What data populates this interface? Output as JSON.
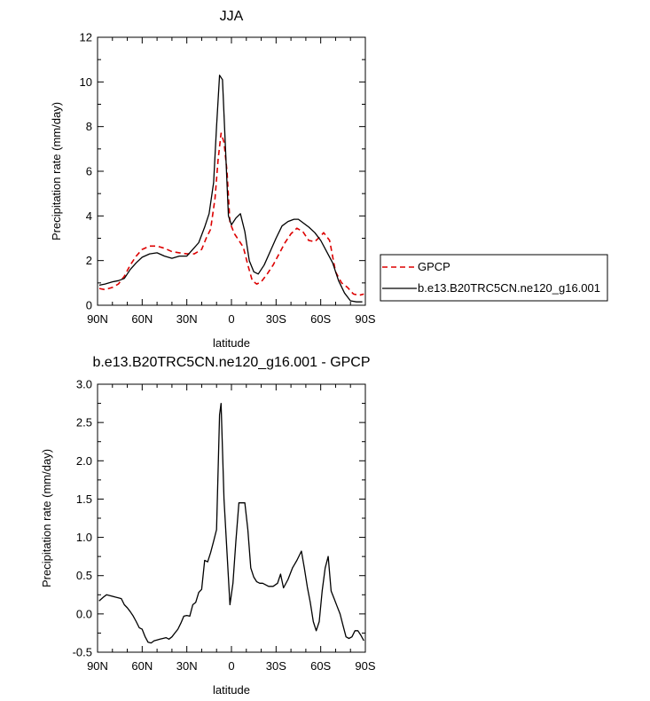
{
  "chart_data": [
    {
      "type": "line",
      "title": "JJA",
      "xlabel": "latitude",
      "ylabel": "Precipitation rate (mm/day)",
      "xlim": [
        90,
        -90
      ],
      "ylim": [
        0,
        12
      ],
      "x_ticks": [
        90,
        60,
        30,
        0,
        -30,
        -60,
        -90
      ],
      "x_tick_labels": [
        "90N",
        "60N",
        "30N",
        "0",
        "30S",
        "60S",
        "90S"
      ],
      "y_ticks": [
        0,
        2,
        4,
        6,
        8,
        10,
        12
      ],
      "y_tick_labels": [
        "0",
        "2",
        "4",
        "6",
        "8",
        "10",
        "12"
      ],
      "grid": false,
      "legend_position": "right",
      "series": [
        {
          "name": "GPCP",
          "color": "#dd0000",
          "dash": "dashed",
          "x": [
            88.8,
            85,
            80,
            76,
            72,
            68,
            64,
            60,
            55,
            50,
            45,
            40,
            35,
            30,
            25,
            20,
            17,
            14,
            11,
            9,
            7,
            5,
            3,
            1,
            -2,
            -5,
            -8,
            -11,
            -14,
            -17,
            -20,
            -24,
            -28,
            -32,
            -36,
            -40,
            -44,
            -48,
            -52,
            -56,
            -60,
            -62,
            -66,
            -70,
            -74,
            -78,
            -82,
            -86,
            -89
          ],
          "y": [
            0.75,
            0.7,
            0.8,
            0.95,
            1.3,
            1.8,
            2.2,
            2.5,
            2.65,
            2.65,
            2.55,
            2.4,
            2.35,
            2.3,
            2.3,
            2.5,
            3.0,
            3.4,
            4.8,
            6.5,
            7.7,
            7.3,
            6.0,
            3.7,
            3.2,
            2.9,
            2.6,
            1.8,
            1.1,
            0.95,
            1.05,
            1.4,
            1.8,
            2.3,
            2.8,
            3.2,
            3.45,
            3.3,
            2.9,
            2.85,
            3.1,
            3.25,
            2.9,
            1.5,
            1.0,
            0.8,
            0.5,
            0.45,
            0.5
          ]
        },
        {
          "name": "b.e13.B20TRC5CN.ne120_g16.001",
          "color": "#000000",
          "dash": "solid",
          "x": [
            88.8,
            85,
            80,
            76,
            72,
            68,
            64,
            60,
            55,
            50,
            45,
            40,
            35,
            30,
            26,
            22,
            18,
            15,
            12,
            10,
            8,
            6,
            4,
            2,
            0,
            -3,
            -6,
            -9,
            -12,
            -15,
            -18,
            -22,
            -26,
            -30,
            -34,
            -38,
            -42,
            -45,
            -48,
            -52,
            -56,
            -60,
            -64,
            -68,
            -72,
            -76,
            -80,
            -84,
            -88
          ],
          "y": [
            0.9,
            0.95,
            1.05,
            1.1,
            1.2,
            1.6,
            1.9,
            2.15,
            2.3,
            2.35,
            2.2,
            2.1,
            2.2,
            2.2,
            2.5,
            2.8,
            3.5,
            4.1,
            5.5,
            8.0,
            10.3,
            10.1,
            7.0,
            4.0,
            3.6,
            3.9,
            4.1,
            3.3,
            2.0,
            1.5,
            1.4,
            1.8,
            2.4,
            3.0,
            3.55,
            3.75,
            3.85,
            3.85,
            3.7,
            3.5,
            3.25,
            2.9,
            2.4,
            1.9,
            1.1,
            0.55,
            0.2,
            0.15,
            0.15
          ]
        }
      ]
    },
    {
      "type": "line",
      "title": "b.e13.B20TRC5CN.ne120_g16.001 - GPCP",
      "xlabel": "latitude",
      "ylabel": "Precipitation rate (mm/day)",
      "xlim": [
        90,
        -90
      ],
      "ylim": [
        -0.5,
        3.0
      ],
      "x_ticks": [
        90,
        60,
        30,
        0,
        -30,
        -60,
        -90
      ],
      "x_tick_labels": [
        "90N",
        "60N",
        "30N",
        "0",
        "30S",
        "60S",
        "90S"
      ],
      "y_ticks": [
        -0.5,
        0.0,
        0.5,
        1.0,
        1.5,
        2.0,
        2.5,
        3.0
      ],
      "y_tick_labels": [
        "-0.5",
        "0.0",
        "0.5",
        "1.0",
        "1.5",
        "2.0",
        "2.5",
        "3.0"
      ],
      "grid": false,
      "series": [
        {
          "color": "#000000",
          "dash": "solid",
          "x": [
            89,
            86,
            84,
            82,
            78,
            76,
            74,
            72,
            70,
            68,
            66,
            64,
            62,
            60,
            58,
            56,
            54,
            52,
            50,
            48,
            46,
            44,
            42,
            40,
            38,
            36,
            34,
            32,
            30,
            28,
            26,
            24,
            22,
            20,
            18,
            16,
            14,
            12,
            10,
            8,
            7,
            5,
            3,
            1,
            -1,
            -3,
            -5,
            -7,
            -9,
            -11,
            -13,
            -15,
            -17,
            -19,
            -21,
            -23,
            -25,
            -28,
            -31,
            -33,
            -35,
            -38,
            -41,
            -44,
            -47,
            -49,
            -51,
            -53,
            -55,
            -57,
            -59,
            -61,
            -63,
            -65,
            -67,
            -69,
            -71,
            -73,
            -75,
            -77,
            -79,
            -81,
            -83,
            -85,
            -87,
            -89
          ],
          "y": [
            0.17,
            0.22,
            0.25,
            0.24,
            0.22,
            0.21,
            0.2,
            0.12,
            0.08,
            0.03,
            -0.03,
            -0.1,
            -0.18,
            -0.2,
            -0.3,
            -0.37,
            -0.38,
            -0.35,
            -0.34,
            -0.33,
            -0.32,
            -0.31,
            -0.33,
            -0.3,
            -0.25,
            -0.2,
            -0.12,
            -0.03,
            -0.02,
            -0.03,
            0.12,
            0.15,
            0.28,
            0.32,
            0.7,
            0.68,
            0.8,
            0.95,
            1.1,
            2.6,
            2.75,
            1.5,
            0.8,
            0.12,
            0.4,
            0.95,
            1.45,
            1.45,
            1.45,
            1.1,
            0.6,
            0.48,
            0.42,
            0.4,
            0.4,
            0.38,
            0.36,
            0.36,
            0.4,
            0.52,
            0.34,
            0.45,
            0.6,
            0.7,
            0.82,
            0.6,
            0.35,
            0.15,
            -0.1,
            -0.22,
            -0.1,
            0.3,
            0.6,
            0.75,
            0.3,
            0.2,
            0.1,
            0.0,
            -0.15,
            -0.3,
            -0.32,
            -0.3,
            -0.22,
            -0.22,
            -0.28,
            -0.35
          ]
        }
      ]
    }
  ]
}
